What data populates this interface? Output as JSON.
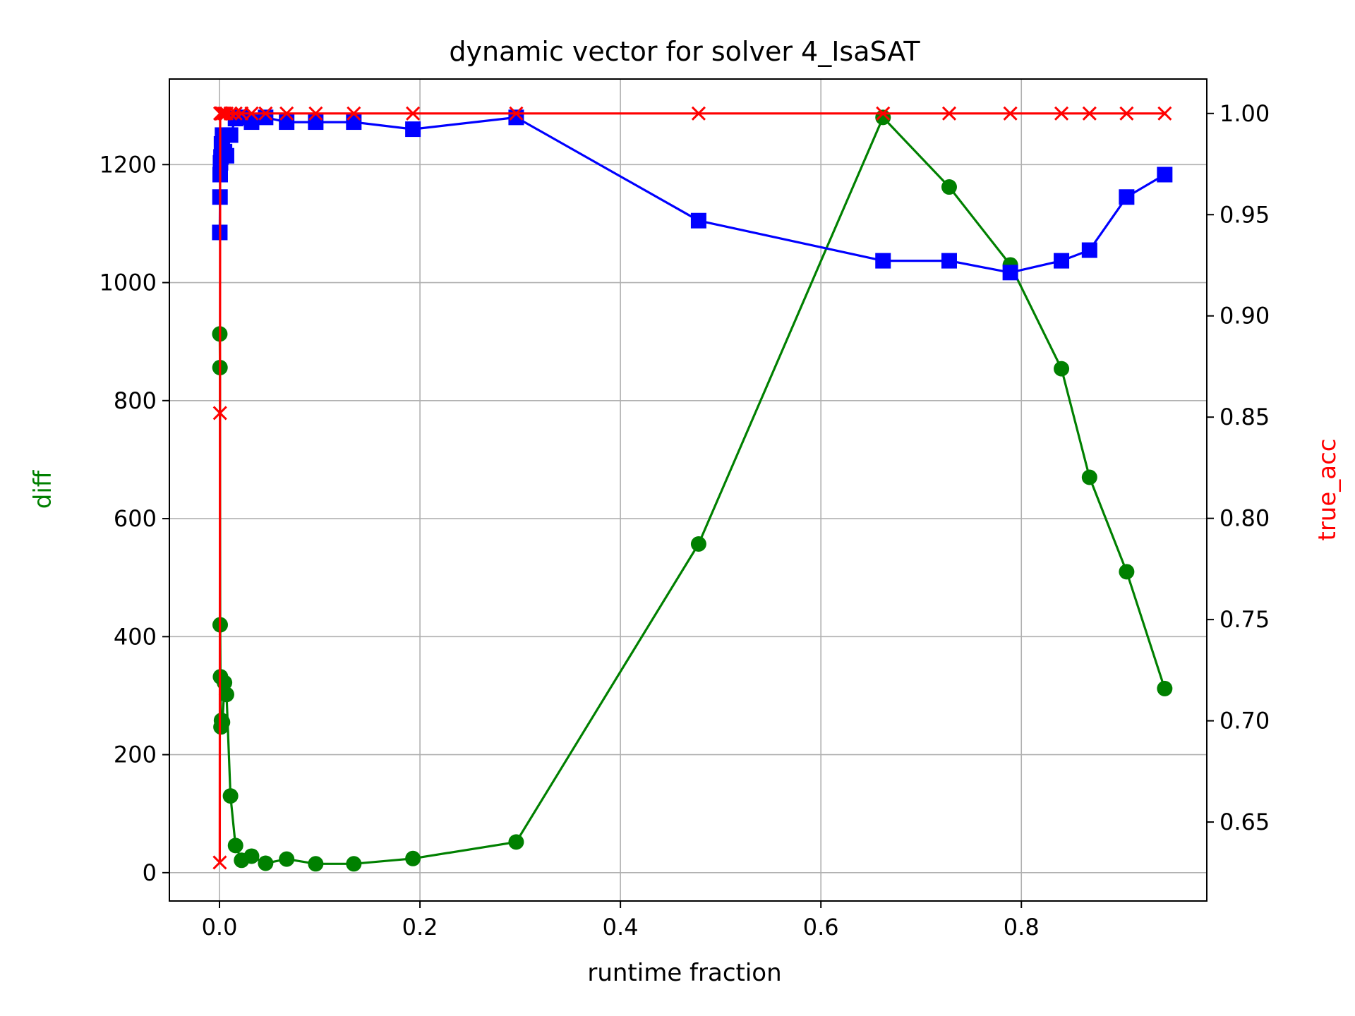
{
  "chart_data": {
    "type": "line",
    "title": "dynamic vector for solver 4_IsaSAT",
    "xlabel": "runtime fraction",
    "ylabel": "diff",
    "ylabel_right": "true_acc",
    "xlim": [
      -0.05,
      0.985
    ],
    "ylim": [
      -48,
      1345
    ],
    "ylim_right": [
      0.611,
      1.017
    ],
    "xticks": [
      0.0,
      0.2,
      0.4,
      0.6,
      0.8
    ],
    "xtick_labels": [
      "0.0",
      "0.2",
      "0.4",
      "0.6",
      "0.8"
    ],
    "yticks": [
      0,
      200,
      400,
      600,
      800,
      1000,
      1200
    ],
    "ytick_labels": [
      "0",
      "200",
      "400",
      "600",
      "800",
      "1000",
      "1200"
    ],
    "yticks_right": [
      0.65,
      0.7,
      0.75,
      0.8,
      0.85,
      0.9,
      0.95,
      1.0
    ],
    "ytick_labels_right": [
      "0.65",
      "0.70",
      "0.75",
      "0.80",
      "0.85",
      "0.90",
      "0.95",
      "1.00"
    ],
    "grid": true,
    "colors": {
      "diff": "#008000",
      "true_acc": "#ff0000",
      "blue_series": "#0000ff",
      "ylabel": "#008000",
      "ylabel_right": "#ff0000"
    },
    "series": [
      {
        "axis": "left",
        "color": "#008000",
        "marker": "circle",
        "x": [
          0.0003,
          0.0005,
          0.0007,
          0.001,
          0.0015,
          0.002,
          0.003,
          0.005,
          0.007,
          0.011,
          0.016,
          0.022,
          0.032,
          0.046,
          0.067,
          0.096,
          0.134,
          0.193,
          0.296,
          0.478,
          0.662,
          0.728,
          0.789,
          0.84,
          0.868,
          0.905,
          0.943
        ],
        "y": [
          913,
          856,
          420,
          332,
          247,
          258,
          255,
          322,
          302,
          130,
          46,
          21,
          28,
          16,
          23,
          15,
          15,
          24,
          52,
          557,
          1280,
          1162,
          1030,
          854,
          670,
          510,
          312
        ]
      },
      {
        "axis": "left",
        "color": "#0000ff",
        "marker": "square",
        "x": [
          0.0003,
          0.0005,
          0.0007,
          0.001,
          0.0015,
          0.002,
          0.003,
          0.005,
          0.007,
          0.011,
          0.016,
          0.022,
          0.032,
          0.046,
          0.067,
          0.096,
          0.134,
          0.193,
          0.296,
          0.478,
          0.662,
          0.728,
          0.789,
          0.84,
          0.868,
          0.905,
          0.943
        ],
        "y": [
          1085,
          1145,
          1183,
          1203,
          1213,
          1235,
          1250,
          1222,
          1215,
          1250,
          1278,
          1280,
          1272,
          1280,
          1272,
          1272,
          1272,
          1260,
          1280,
          1105,
          1037,
          1037,
          1017,
          1037,
          1055,
          1145,
          1183
        ]
      },
      {
        "axis": "right",
        "color": "#ff0000",
        "marker": "x",
        "x": [
          0.0003,
          0.0005,
          0.0007,
          0.001,
          0.0015,
          0.002,
          0.003,
          0.005,
          0.007,
          0.011,
          0.016,
          0.022,
          0.032,
          0.046,
          0.067,
          0.096,
          0.134,
          0.193,
          0.296,
          0.478,
          0.662,
          0.728,
          0.789,
          0.84,
          0.868,
          0.905,
          0.943
        ],
        "y": [
          0.63,
          0.852,
          1.0,
          1.0,
          1.0,
          1.0,
          1.0,
          1.0,
          1.0,
          1.0,
          1.0,
          1.0,
          1.0,
          1.0,
          1.0,
          1.0,
          1.0,
          1.0,
          1.0,
          1.0,
          1.0,
          1.0,
          1.0,
          1.0,
          1.0,
          1.0,
          1.0
        ]
      }
    ]
  }
}
